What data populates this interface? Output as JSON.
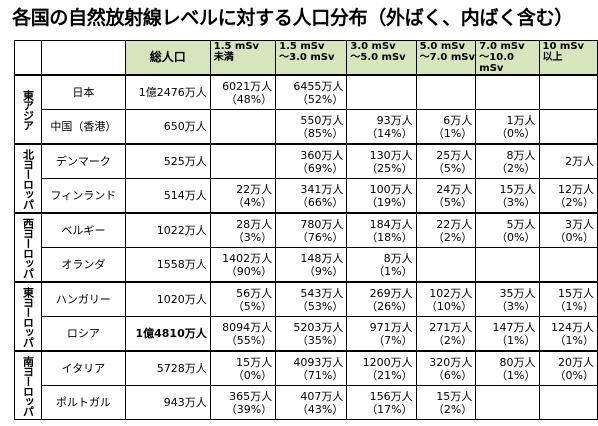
{
  "title": "各国の自然放射線レベルに対する人口分布（外ばく、内ばく含む）",
  "table": {
    "header": {
      "total": "総人口",
      "bins": [
        {
          "line1": "1.5 mSv",
          "line2": "未満"
        },
        {
          "line1": "1.5 mSv",
          "line2": "～3.0 mSv"
        },
        {
          "line1": "3.0 mSv",
          "line2": "～5.0 mSv"
        },
        {
          "line1": "5.0 mSv",
          "line2": "～7.0 mSv"
        },
        {
          "line1": "7.0 mSv",
          "line2": "～10.0 mSv"
        },
        {
          "line1": "10 mSv",
          "line2": "以上"
        }
      ]
    },
    "regions": [
      {
        "name": "東アジア",
        "rows": [
          {
            "country": "日本",
            "total": "1億2476万人",
            "total_bold": false,
            "cells": [
              [
                "6021万人",
                "（48%）"
              ],
              [
                "6455万人",
                "（52%）"
              ],
              [
                "",
                ""
              ],
              [
                "",
                ""
              ],
              [
                "",
                ""
              ],
              [
                "",
                ""
              ]
            ]
          },
          {
            "country": "中国（香港）",
            "total": "650万人",
            "total_bold": false,
            "cells": [
              [
                "",
                ""
              ],
              [
                "550万人",
                "（85%）"
              ],
              [
                "93万人",
                "（14%）"
              ],
              [
                "6万人",
                "（1%）"
              ],
              [
                "1万人",
                "（0%）"
              ],
              [
                "",
                ""
              ]
            ]
          }
        ]
      },
      {
        "name": "北ヨーロッパ",
        "rows": [
          {
            "country": "デンマーク",
            "total": "525万人",
            "total_bold": false,
            "cells": [
              [
                "",
                ""
              ],
              [
                "360万人",
                "（69%）"
              ],
              [
                "130万人",
                "（25%）"
              ],
              [
                "25万人",
                "（5%）"
              ],
              [
                "8万人",
                "（2%）"
              ],
              [
                "2万人",
                ""
              ]
            ]
          },
          {
            "country": "フィンランド",
            "total": "514万人",
            "total_bold": false,
            "cells": [
              [
                "22万人",
                "（4%）"
              ],
              [
                "341万人",
                "（66%）"
              ],
              [
                "100万人",
                "（19%）"
              ],
              [
                "24万人",
                "（5%）"
              ],
              [
                "15万人",
                "（3%）"
              ],
              [
                "12万人",
                "（2%）"
              ]
            ]
          }
        ]
      },
      {
        "name": "西ヨーロッパ",
        "rows": [
          {
            "country": "ベルギー",
            "total": "1022万人",
            "total_bold": false,
            "cells": [
              [
                "28万人",
                "（3%）"
              ],
              [
                "780万人",
                "（76%）"
              ],
              [
                "184万人",
                "（18%）"
              ],
              [
                "22万人",
                "（2%）"
              ],
              [
                "5万人",
                "（0%）"
              ],
              [
                "3万人",
                "（0%）"
              ]
            ]
          },
          {
            "country": "オランダ",
            "total": "1558万人",
            "total_bold": false,
            "cells": [
              [
                "1402万人",
                "（90%）"
              ],
              [
                "148万人",
                "（9%）"
              ],
              [
                "8万人",
                "（1%）"
              ],
              [
                "",
                ""
              ],
              [
                "",
                ""
              ],
              [
                "",
                ""
              ]
            ]
          }
        ]
      },
      {
        "name": "東ヨーロッパ",
        "rows": [
          {
            "country": "ハンガリー",
            "total": "1020万人",
            "total_bold": false,
            "cells": [
              [
                "56万人",
                "（5%）"
              ],
              [
                "543万人",
                "（53%）"
              ],
              [
                "269万人",
                "（26%）"
              ],
              [
                "102万人",
                "（10%）"
              ],
              [
                "35万人",
                "（3%）"
              ],
              [
                "15万人",
                "（1%）"
              ]
            ]
          },
          {
            "country": "ロシア",
            "total": "1億4810万人",
            "total_bold": true,
            "cells": [
              [
                "8094万人",
                "（55%）"
              ],
              [
                "5203万人",
                "（35%）"
              ],
              [
                "971万人",
                "（7%）"
              ],
              [
                "271万人",
                "（2%）"
              ],
              [
                "147万人",
                "（1%）"
              ],
              [
                "124万人",
                "（1%）"
              ]
            ]
          }
        ]
      },
      {
        "name": "南ヨーロッパ",
        "rows": [
          {
            "country": "イタリア",
            "total": "5728万人",
            "total_bold": false,
            "cells": [
              [
                "15万人",
                "（0%）"
              ],
              [
                "4093万人",
                "（71%）"
              ],
              [
                "1200万人",
                "（21%）"
              ],
              [
                "320万人",
                "（6%）"
              ],
              [
                "80万人",
                "（1%）"
              ],
              [
                "20万人",
                "（0%）"
              ]
            ]
          },
          {
            "country": "ポルトガル",
            "total": "943万人",
            "total_bold": false,
            "cells": [
              [
                "365万人",
                "（39%）"
              ],
              [
                "407万人",
                "（43%）"
              ],
              [
                "156万人",
                "（17%）"
              ],
              [
                "15万人",
                "（2%）"
              ],
              [
                "",
                ""
              ],
              [
                "",
                ""
              ]
            ]
          }
        ]
      }
    ]
  }
}
